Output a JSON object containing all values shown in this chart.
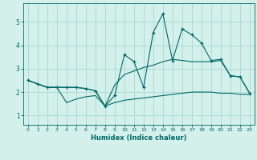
{
  "title": "",
  "xlabel": "Humidex (Indice chaleur)",
  "ylabel": "",
  "background_color": "#d4f0eb",
  "grid_color": "#a8d8d0",
  "line_color": "#006868",
  "x_ticks": [
    0,
    1,
    2,
    3,
    4,
    5,
    6,
    7,
    8,
    9,
    10,
    11,
    12,
    13,
    14,
    15,
    16,
    17,
    18,
    19,
    20,
    21,
    22,
    23
  ],
  "y_ticks": [
    1,
    2,
    3,
    4,
    5
  ],
  "xlim": [
    -0.5,
    23.5
  ],
  "ylim": [
    0.6,
    5.8
  ],
  "main_line_x": [
    0,
    1,
    2,
    3,
    4,
    5,
    6,
    7,
    8,
    9,
    10,
    11,
    12,
    13,
    14,
    15,
    16,
    17,
    18,
    19,
    20,
    21,
    22,
    23
  ],
  "main_line_y": [
    2.5,
    2.35,
    2.2,
    2.2,
    2.2,
    2.2,
    2.15,
    2.05,
    1.4,
    1.85,
    3.6,
    3.3,
    2.2,
    4.55,
    5.35,
    3.35,
    4.7,
    4.45,
    4.1,
    3.35,
    3.4,
    2.7,
    2.65,
    1.95
  ],
  "upper_line_x": [
    0,
    1,
    2,
    3,
    4,
    5,
    6,
    7,
    8,
    9,
    10,
    11,
    12,
    13,
    14,
    15,
    16,
    17,
    18,
    19,
    20,
    21,
    22,
    23
  ],
  "upper_line_y": [
    2.5,
    2.35,
    2.2,
    2.2,
    2.2,
    2.2,
    2.15,
    2.05,
    1.4,
    2.3,
    2.75,
    2.9,
    3.05,
    3.15,
    3.3,
    3.4,
    3.35,
    3.3,
    3.3,
    3.3,
    3.35,
    2.7,
    2.65,
    1.95
  ],
  "lower_line_x": [
    0,
    1,
    2,
    3,
    4,
    5,
    6,
    7,
    8,
    9,
    10,
    11,
    12,
    13,
    14,
    15,
    16,
    17,
    18,
    19,
    20,
    21,
    22,
    23
  ],
  "lower_line_y": [
    2.5,
    2.35,
    2.2,
    2.2,
    1.55,
    1.7,
    1.8,
    1.85,
    1.4,
    1.55,
    1.65,
    1.7,
    1.75,
    1.8,
    1.85,
    1.9,
    1.95,
    2.0,
    2.0,
    2.0,
    1.95,
    1.95,
    1.9,
    1.9
  ]
}
